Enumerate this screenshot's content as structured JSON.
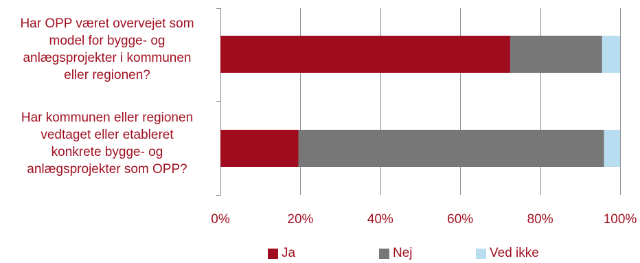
{
  "chart_data": {
    "type": "bar",
    "orientation": "horizontal",
    "stacked": true,
    "percent": true,
    "categories": [
      "Har OPP været overvejet som model for bygge- og anlægsprojekter i kommunen eller regionen?",
      "Har kommunen eller regionen vedtaget eller etableret konkrete bygge- og anlægsprojekter som OPP?"
    ],
    "category_lines": [
      [
        "Har OPP været overvejet som",
        "model for bygge- og",
        "anlægsprojekter i kommunen",
        "eller regionen?"
      ],
      [
        "Har kommunen eller regionen",
        "vedtaget eller etableret",
        "konkrete bygge- og",
        "anlægsprojekter som OPP?"
      ]
    ],
    "series": [
      {
        "name": "Ja",
        "color": "#a00c1e",
        "values": [
          72.5,
          19.5
        ]
      },
      {
        "name": "Nej",
        "color": "#777777",
        "values": [
          23.0,
          76.5
        ]
      },
      {
        "name": "Ved ikke",
        "color": "#b8dcf0",
        "values": [
          4.5,
          4.0
        ]
      }
    ],
    "x_ticks": [
      "0%",
      "20%",
      "40%",
      "60%",
      "80%",
      "100%"
    ],
    "xlim": [
      0,
      100
    ],
    "grid": true,
    "legend_position": "bottom"
  }
}
